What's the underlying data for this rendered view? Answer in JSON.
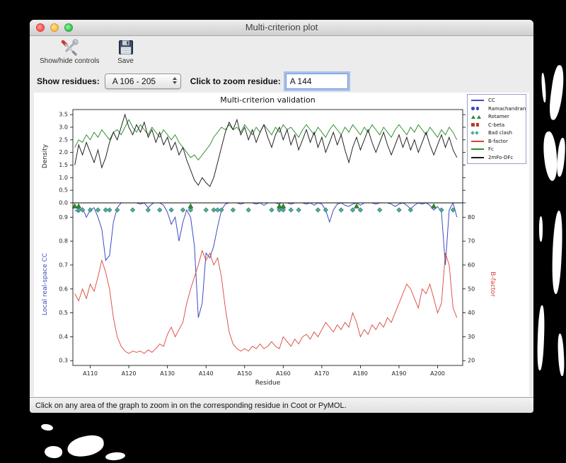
{
  "window": {
    "title": "Multi-criterion plot"
  },
  "toolbar": {
    "show_hide_label": "Show/hide controls",
    "save_label": "Save"
  },
  "controls": {
    "show_residues_label": "Show residues:",
    "residue_range_value": "A 106 - 205",
    "zoom_residue_label": "Click to zoom residue:",
    "zoom_residue_value": "A 144"
  },
  "status_bar": {
    "text": "Click on any area of the graph to zoom in on the corresponding residue in Coot or PyMOL."
  },
  "chart_data": {
    "type": "line",
    "title": "Multi-criterion validation",
    "x_label": "Residue",
    "x_range": [
      106,
      205
    ],
    "x_ticks": [
      {
        "r": 110,
        "label": "A110"
      },
      {
        "r": 120,
        "label": "A120"
      },
      {
        "r": 130,
        "label": "A130"
      },
      {
        "r": 140,
        "label": "A140"
      },
      {
        "r": 150,
        "label": "A150"
      },
      {
        "r": 160,
        "label": "A160"
      },
      {
        "r": 170,
        "label": "A170"
      },
      {
        "r": 180,
        "label": "A180"
      },
      {
        "r": 190,
        "label": "A190"
      },
      {
        "r": 200,
        "label": "A200"
      }
    ],
    "residue_start": 106,
    "top_plot": {
      "y_label": "Density",
      "y_range": [
        0,
        3.7
      ],
      "y_ticks": [
        "0.0",
        "0.5",
        "1.0",
        "1.5",
        "2.0",
        "2.5",
        "3.0",
        "3.5"
      ],
      "series": [
        {
          "name": "Fc",
          "color": "#2f8b2f",
          "values": [
            2.2,
            2.5,
            2.4,
            2.7,
            2.5,
            2.8,
            2.6,
            2.9,
            2.7,
            2.5,
            2.8,
            2.9,
            2.7,
            3.0,
            3.3,
            3.0,
            2.8,
            3.1,
            2.9,
            2.7,
            3.0,
            2.8,
            2.6,
            2.9,
            2.7,
            2.5,
            2.7,
            2.4,
            2.2,
            2.0,
            1.8,
            1.9,
            1.7,
            1.9,
            2.1,
            2.3,
            2.6,
            2.8,
            3.0,
            2.9,
            3.1,
            2.9,
            3.0,
            2.8,
            3.1,
            2.9,
            2.7,
            3.0,
            2.8,
            3.1,
            2.9,
            2.7,
            3.0,
            2.8,
            3.1,
            2.9,
            3.0,
            2.8,
            2.6,
            2.9,
            3.1,
            2.9,
            2.7,
            3.0,
            2.8,
            2.6,
            2.9,
            3.1,
            2.9,
            2.7,
            3.0,
            2.8,
            3.1,
            2.9,
            2.7,
            3.0,
            2.8,
            3.1,
            2.9,
            2.7,
            3.0,
            2.8,
            2.6,
            2.9,
            3.1,
            2.9,
            2.7,
            3.0,
            2.8,
            3.1,
            2.9,
            2.7,
            3.0,
            2.8,
            2.6,
            2.9,
            2.7,
            3.0,
            2.8,
            2.5
          ]
        },
        {
          "name": "2mFo-DFc",
          "color": "#1a1a1a",
          "values": [
            1.5,
            2.3,
            1.9,
            2.4,
            2.0,
            1.6,
            2.1,
            1.4,
            1.8,
            2.4,
            2.8,
            2.5,
            3.0,
            3.5,
            3.0,
            2.7,
            3.1,
            2.8,
            3.2,
            2.6,
            2.9,
            2.4,
            2.8,
            2.3,
            2.6,
            2.1,
            2.4,
            1.9,
            2.2,
            1.7,
            1.3,
            0.9,
            0.7,
            1.0,
            0.8,
            0.65,
            1.0,
            1.6,
            2.2,
            2.8,
            3.2,
            2.9,
            3.3,
            2.7,
            3.0,
            2.5,
            2.9,
            2.4,
            2.8,
            3.1,
            2.6,
            2.2,
            2.7,
            3.0,
            2.5,
            2.9,
            2.3,
            2.7,
            2.1,
            2.5,
            2.9,
            2.4,
            2.8,
            2.2,
            2.6,
            2.0,
            2.4,
            2.8,
            2.3,
            2.7,
            2.1,
            1.6,
            2.2,
            2.6,
            2.1,
            2.5,
            2.9,
            2.4,
            2.0,
            2.4,
            2.8,
            2.3,
            1.9,
            2.3,
            2.7,
            2.2,
            2.6,
            2.1,
            2.5,
            2.0,
            2.4,
            2.8,
            2.3,
            1.9,
            2.3,
            2.7,
            2.2,
            2.6,
            2.1,
            1.8
          ]
        }
      ]
    },
    "bottom_plot": {
      "y_label_left": "Local real-space CC",
      "y_label_left_color": "#3b4cc0",
      "y_range_left": [
        0.28,
        0.96
      ],
      "y_ticks_left": [
        "0.3",
        "0.4",
        "0.5",
        "0.6",
        "0.7",
        "0.8",
        "0.9"
      ],
      "y_label_right": "B-factor",
      "y_label_right_color": "#d9443a",
      "y_range_right": [
        18,
        86
      ],
      "y_ticks_right": [
        "20",
        "30",
        "40",
        "50",
        "60",
        "70",
        "80"
      ],
      "series": [
        {
          "name": "CC",
          "axis": "left",
          "color": "#3b4cc0",
          "values": [
            0.93,
            0.92,
            0.94,
            0.9,
            0.93,
            0.94,
            0.9,
            0.85,
            0.72,
            0.74,
            0.88,
            0.94,
            0.96,
            0.965,
            0.96,
            0.965,
            0.96,
            0.955,
            0.96,
            0.94,
            0.955,
            0.965,
            0.96,
            0.95,
            0.92,
            0.87,
            0.9,
            0.8,
            0.88,
            0.93,
            0.9,
            0.78,
            0.48,
            0.54,
            0.75,
            0.73,
            0.78,
            0.86,
            0.93,
            0.955,
            0.96,
            0.965,
            0.96,
            0.955,
            0.96,
            0.965,
            0.96,
            0.955,
            0.96,
            0.95,
            0.96,
            0.965,
            0.96,
            0.955,
            0.965,
            0.96,
            0.955,
            0.96,
            0.965,
            0.96,
            0.955,
            0.96,
            0.95,
            0.96,
            0.955,
            0.93,
            0.88,
            0.93,
            0.955,
            0.96,
            0.95,
            0.945,
            0.955,
            0.96,
            0.95,
            0.96,
            0.965,
            0.96,
            0.955,
            0.96,
            0.965,
            0.96,
            0.955,
            0.945,
            0.955,
            0.96,
            0.95,
            0.935,
            0.95,
            0.96,
            0.955,
            0.96,
            0.95,
            0.93,
            0.945,
            0.92,
            0.7,
            0.93,
            0.96,
            0.9
          ]
        },
        {
          "name": "B-factor",
          "axis": "right",
          "color": "#d9443a",
          "values": [
            48,
            45,
            50,
            46,
            52,
            49,
            55,
            62,
            57,
            50,
            38,
            30,
            26,
            24,
            23,
            24,
            23.5,
            24,
            23,
            24.5,
            23.5,
            25,
            27,
            26,
            31,
            34,
            30,
            33,
            36,
            44,
            50,
            55,
            60,
            66,
            62,
            65,
            60,
            63,
            55,
            42,
            32,
            27,
            25,
            24,
            25,
            24,
            26,
            25,
            27,
            25,
            26,
            28,
            26,
            25,
            30,
            28,
            26,
            29,
            27,
            30,
            31,
            29,
            32,
            30,
            33,
            36,
            34,
            32,
            35,
            33,
            36,
            34,
            40,
            36,
            30,
            33,
            31,
            35,
            33,
            36,
            34,
            38,
            36,
            40,
            44,
            48,
            52,
            50,
            46,
            42,
            50,
            48,
            52,
            46,
            40,
            44,
            65,
            60,
            42,
            38
          ]
        }
      ],
      "markers": [
        {
          "name": "Bad clash",
          "shape": "diamond",
          "color": "#4fae9e",
          "residues": [
            107,
            108,
            110,
            112,
            114,
            115,
            117,
            121,
            125,
            128,
            131,
            134,
            136,
            140,
            142,
            143,
            144,
            147,
            151,
            157,
            159,
            160,
            162,
            164,
            169,
            171,
            175,
            178,
            180,
            185,
            190,
            193,
            201,
            204
          ]
        },
        {
          "name": "Rotamer",
          "shape": "triangle",
          "color": "#2e8b2e",
          "residues": [
            106,
            107,
            136,
            159,
            160,
            179,
            199
          ]
        }
      ]
    },
    "legend": [
      {
        "key": "cc",
        "label": "CC",
        "symbol": "line",
        "color": "#3b4cc0"
      },
      {
        "key": "ramachandran",
        "label": "Ramachandran",
        "symbol": "dot",
        "color": "#3b4cc0"
      },
      {
        "key": "rotamer",
        "label": "Rotamer",
        "symbol": "triangle",
        "color": "#2e8b2e"
      },
      {
        "key": "c-beta",
        "label": "C-beta",
        "symbol": "square",
        "color": "#c0392b"
      },
      {
        "key": "bad-clash",
        "label": "Bad clash",
        "symbol": "diamond",
        "color": "#4fae9e"
      },
      {
        "key": "b-factor",
        "label": "B-factor",
        "symbol": "line",
        "color": "#d9443a"
      },
      {
        "key": "fc",
        "label": "Fc",
        "symbol": "line",
        "color": "#2f8b2f"
      },
      {
        "key": "2mfo-dfc",
        "label": "2mFo-DFc",
        "symbol": "line",
        "color": "#1a1a1a"
      }
    ]
  }
}
